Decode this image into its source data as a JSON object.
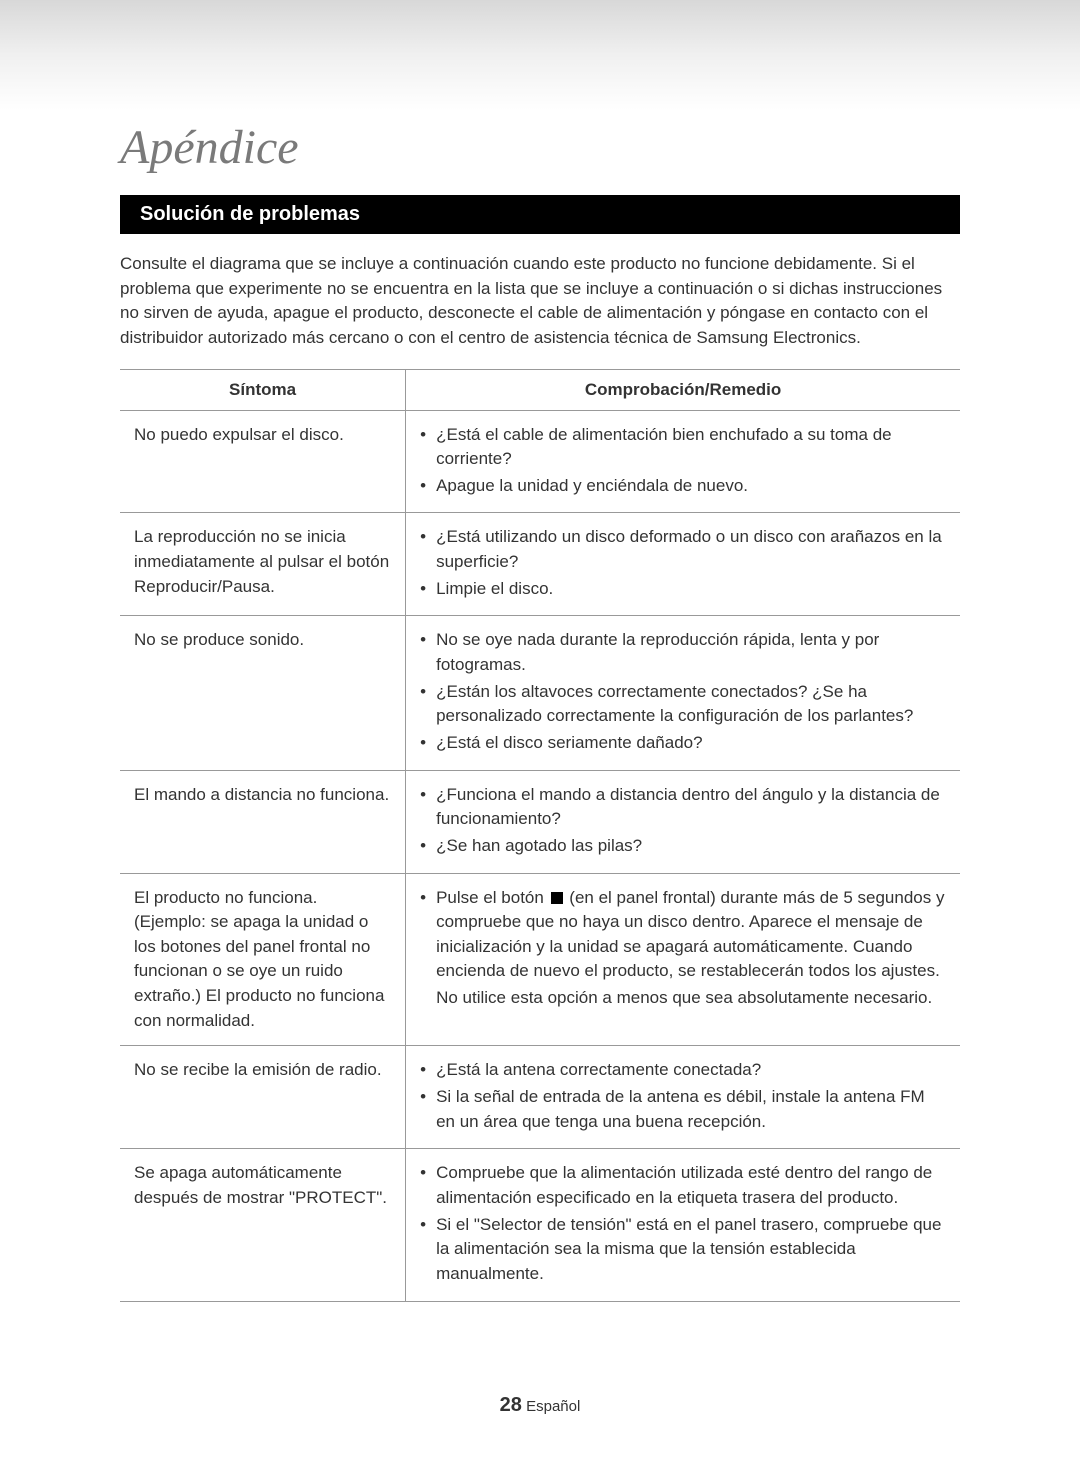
{
  "page": {
    "title": "Apéndice",
    "section_header": "Solución de problemas",
    "intro": "Consulte el diagrama que se incluye a continuación cuando este producto no funcione debidamente. Si el problema que experimente no se encuentra en la lista que se incluye a continuación o si dichas instrucciones no sirven de ayuda, apague el producto, desconecte el cable de alimentación y póngase en contacto con el distribuidor autorizado más cercano o con el centro de asistencia técnica de Samsung Electronics.",
    "footer_number": "28",
    "footer_lang": "Español"
  },
  "table": {
    "header_symptom": "Síntoma",
    "header_remedy": "Comprobación/Remedio",
    "rows": [
      {
        "symptom": "No puedo expulsar el disco.",
        "remedies": [
          "¿Está el cable de alimentación bien enchufado a su toma de corriente?",
          "Apague la unidad y enciéndala de nuevo."
        ]
      },
      {
        "symptom": "La reproducción no se inicia inmediatamente al pulsar el botón Reproducir/Pausa.",
        "remedies": [
          "¿Está utilizando un disco deformado o un disco con arañazos en la superficie?",
          "Limpie el disco."
        ]
      },
      {
        "symptom": "No se produce sonido.",
        "remedies": [
          "No se oye nada durante la reproducción rápida, lenta y por fotogramas.",
          "¿Están los altavoces correctamente conectados? ¿Se ha personalizado correctamente la configuración de los parlantes?",
          "¿Está el disco seriamente dañado?"
        ]
      },
      {
        "symptom": "El mando a distancia no funciona.",
        "remedies": [
          "¿Funciona el mando a distancia dentro del ángulo y la distancia de funcionamiento?",
          "¿Se han agotado las pilas?"
        ]
      },
      {
        "symptom": "El producto no funciona. (Ejemplo: se apaga la unidad o los botones del panel frontal no funcionan o se oye un ruido extraño.) El producto no funciona con normalidad.",
        "remedies_special": {
          "prefix": "Pulse el botón ",
          "suffix": " (en el panel frontal) durante más de 5 segundos y compruebe que no haya un disco dentro. Aparece el mensaje de inicialización y la unidad se apagará automáticamente. Cuando encienda de nuevo el producto, se restablecerán todos los ajustes.",
          "extra": "No utilice esta opción a menos que sea absolutamente necesario."
        }
      },
      {
        "symptom": "No se recibe la emisión de radio.",
        "remedies": [
          "¿Está la antena correctamente conectada?",
          "Si la señal de entrada de la antena es débil, instale la antena FM en un área que tenga una buena recepción."
        ]
      },
      {
        "symptom": "Se apaga automáticamente después de mostrar \"PROTECT\".",
        "remedies": [
          "Compruebe que la alimentación utilizada esté dentro del rango de alimentación especificado en la etiqueta trasera del producto.",
          "Si el \"Selector de tensión\" está en el panel trasero, compruebe que la alimentación sea la misma que la tensión establecida manualmente."
        ]
      }
    ]
  },
  "colors": {
    "title_color": "#7a7a7a",
    "text_color": "#333333",
    "header_bg": "#000000",
    "header_fg": "#ffffff",
    "border_color": "#999999"
  }
}
